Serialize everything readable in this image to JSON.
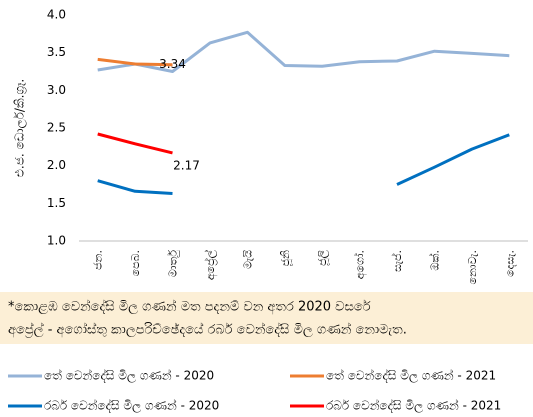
{
  "chart_data": {
    "type": "line",
    "y_label": "එ.ජ. ඩොලර්/කි.ග්‍රෑ.",
    "categories": [
      "ජන.",
      "පෙබ.",
      "මාර්තු",
      "අප්‍රේල්",
      "මැයි",
      "ජූනි",
      "ජූලි",
      "අගෝ.",
      "සැප්.",
      "ඔක්.",
      "නොවැ.",
      "දෙසැ."
    ],
    "series": [
      {
        "name": "තේ වෙන්දේසි මිල ගණන් - 2020",
        "color": "#95b3d7",
        "values": [
          3.27,
          3.35,
          3.25,
          3.63,
          3.77,
          3.33,
          3.32,
          3.38,
          3.39,
          3.52,
          3.49,
          3.46
        ]
      },
      {
        "name": "තේ වෙන්දේසි මිල ගණන් - 2021",
        "color": "#ed7d31",
        "values": [
          3.41,
          3.35,
          3.34,
          null,
          null,
          null,
          null,
          null,
          null,
          null,
          null,
          null
        ],
        "value_labels": [
          null,
          null,
          "3.34",
          null,
          null,
          null,
          null,
          null,
          null,
          null,
          null,
          null
        ]
      },
      {
        "name": "රබර් වෙන්දේසි මිල ගණන් - 2020",
        "color": "#0070c0",
        "values": [
          1.8,
          1.66,
          1.63,
          null,
          null,
          null,
          null,
          null,
          1.75,
          1.98,
          2.22,
          2.41
        ]
      },
      {
        "name": "රබර් වෙන්දේසි මිල ගණන් - 2021",
        "color": "#ff0000",
        "values": [
          2.42,
          2.29,
          2.17,
          null,
          null,
          null,
          null,
          null,
          null,
          null,
          null,
          null
        ],
        "value_labels": [
          null,
          null,
          "2.17",
          null,
          null,
          null,
          null,
          null,
          null,
          null,
          null,
          null
        ]
      }
    ],
    "ylim": [
      1,
      4
    ],
    "yticks": [
      {
        "value": 1,
        "label": "1.0"
      },
      1.5,
      {
        "value": 2,
        "label": "2.0"
      },
      2.5,
      {
        "value": 3,
        "label": "3.0"
      },
      3.5,
      {
        "value": 4,
        "label": "4.0"
      }
    ],
    "grid": false,
    "note": [
      "*කොළඹ වෙන්දේසි මිල ගණන් මත පදනම් වන අතර 2020 වසරේ",
      "අප්‍රේල් - අගෝස්තු කාලපරිච්ඡේදයේ රබර් වෙන්දේසි මිල ගණන් නොමැත."
    ]
  }
}
